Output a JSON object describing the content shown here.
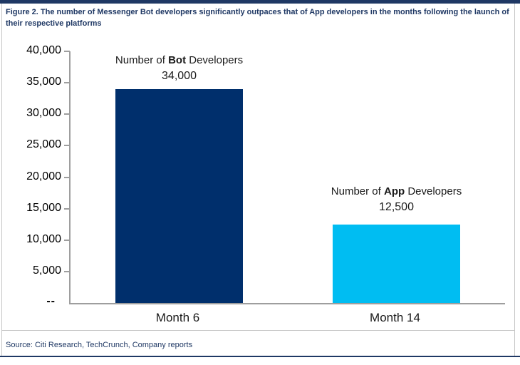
{
  "header": {
    "title_line1": "Figure 2. The number of Messenger Bot developers significantly outpaces that of App developers in the months following the launch of",
    "title_line2": "their respective platforms"
  },
  "chart_data": {
    "type": "bar",
    "title": "Figure 2. The number of Messenger Bot developers significantly outpaces that of App developers in the months following the launch of their respective platforms",
    "categories": [
      "Month 6",
      "Month 14"
    ],
    "values": [
      34000,
      12500
    ],
    "bar_colors": [
      "#002F6C",
      "#00BDF2"
    ],
    "xlabel": "",
    "ylabel": "",
    "ylim": [
      0,
      40000
    ],
    "ytick_values": [
      40000,
      35000,
      30000,
      25000,
      20000,
      15000,
      10000,
      5000
    ],
    "ytick_labels": [
      "40,000",
      "35,000",
      "30,000",
      "25,000",
      "20,000",
      "15,000",
      "10,000",
      "5,000"
    ],
    "zero_label": "--",
    "grid": false,
    "legend": false,
    "annotations": [
      {
        "prefix": "Number of ",
        "bold": "Bot",
        "suffix": " Developers",
        "value_label": "34,000"
      },
      {
        "prefix": "Number of ",
        "bold": "App",
        "suffix": " Developers",
        "value_label": "12,500"
      }
    ]
  },
  "footer": {
    "source": "Source: Citi Research, TechCrunch, Company reports"
  },
  "colors": {
    "accent_navy": "#1F3864",
    "bar_navy": "#002F6C",
    "bar_cyan": "#00BDF2",
    "axis_gray": "#9E9E9E",
    "border_gray": "#C6C6C6"
  }
}
